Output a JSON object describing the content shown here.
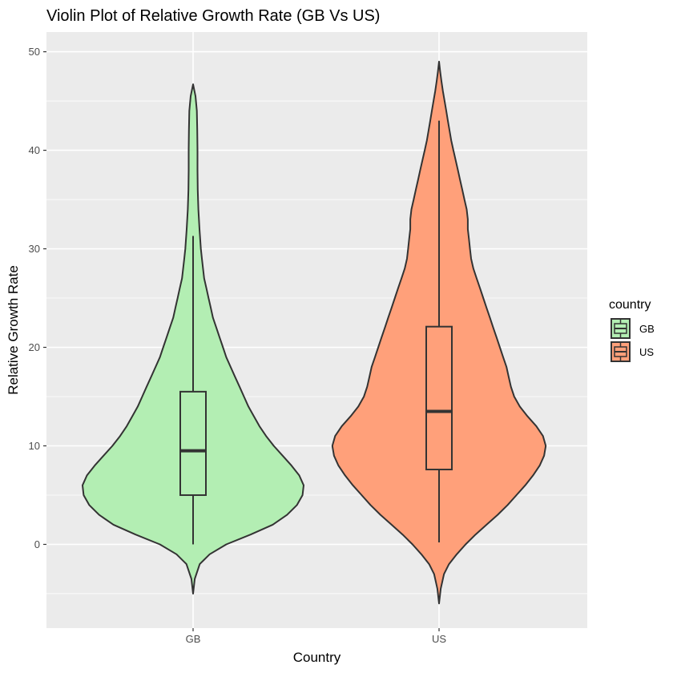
{
  "chart_data": {
    "type": "violin",
    "title": "Violin Plot of Relative Growth Rate (GB Vs US)",
    "xlabel": "Country",
    "ylabel": "Relative Growth Rate",
    "categories": [
      "GB",
      "US"
    ],
    "ylim": [
      -8.5,
      52
    ],
    "yticks": [
      0,
      10,
      20,
      30,
      40,
      50
    ],
    "grid": true,
    "legend": {
      "title": "country",
      "placement": "right",
      "entries": [
        {
          "label": "GB",
          "color": "#b3eeb3"
        },
        {
          "label": "US",
          "color": "#ffa07a"
        }
      ]
    },
    "series": [
      {
        "name": "GB",
        "color": "#b3eeb3",
        "box": {
          "lower_whisker": 0,
          "q1": 5,
          "median": 9.5,
          "q3": 15.5,
          "upper_whisker": 31.3
        },
        "violin": {
          "y": [
            -5,
            -3.5,
            -2,
            -1,
            0,
            1,
            2,
            3,
            4,
            5,
            6,
            7,
            8,
            9,
            10,
            11,
            12,
            13,
            14,
            15,
            16,
            17,
            18,
            19,
            20,
            21,
            22,
            23,
            24,
            25,
            26,
            27,
            28,
            29,
            30,
            32,
            34,
            36,
            38,
            40,
            42,
            44,
            45.5,
            46.7
          ],
          "halfwidth": [
            0,
            0.015,
            0.06,
            0.15,
            0.3,
            0.52,
            0.72,
            0.85,
            0.94,
            0.99,
            1.0,
            0.96,
            0.89,
            0.81,
            0.73,
            0.66,
            0.6,
            0.55,
            0.5,
            0.46,
            0.42,
            0.38,
            0.34,
            0.3,
            0.27,
            0.24,
            0.21,
            0.18,
            0.16,
            0.14,
            0.12,
            0.1,
            0.09,
            0.08,
            0.07,
            0.058,
            0.048,
            0.042,
            0.04,
            0.04,
            0.038,
            0.034,
            0.022,
            0
          ]
        }
      },
      {
        "name": "US",
        "color": "#ffa07a",
        "box": {
          "lower_whisker": 0.2,
          "q1": 7.6,
          "median": 13.5,
          "q3": 22.1,
          "upper_whisker": 43
        },
        "violin": {
          "y": [
            -6,
            -4.5,
            -3,
            -2,
            -1,
            0,
            1,
            2,
            3,
            4,
            5,
            6,
            7,
            8,
            9,
            10,
            11,
            12,
            13,
            14,
            15,
            16,
            17,
            18,
            19,
            20,
            21,
            22,
            23,
            24,
            25,
            26,
            27,
            28,
            29,
            30,
            31,
            32,
            33,
            34,
            35,
            36,
            37,
            38,
            39,
            40,
            41,
            42,
            43,
            44,
            45,
            46,
            47,
            48,
            49
          ],
          "halfwidth": [
            0,
            0.015,
            0.045,
            0.09,
            0.16,
            0.24,
            0.33,
            0.43,
            0.53,
            0.62,
            0.7,
            0.78,
            0.85,
            0.91,
            0.95,
            0.965,
            0.94,
            0.88,
            0.8,
            0.73,
            0.68,
            0.65,
            0.63,
            0.61,
            0.58,
            0.55,
            0.52,
            0.49,
            0.46,
            0.43,
            0.4,
            0.37,
            0.34,
            0.31,
            0.29,
            0.28,
            0.27,
            0.26,
            0.26,
            0.25,
            0.23,
            0.21,
            0.19,
            0.17,
            0.15,
            0.13,
            0.11,
            0.095,
            0.08,
            0.065,
            0.05,
            0.035,
            0.022,
            0.01,
            0
          ]
        }
      }
    ]
  }
}
